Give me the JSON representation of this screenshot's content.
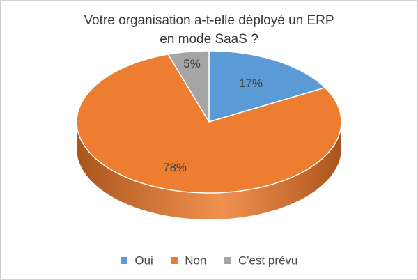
{
  "chart_data": {
    "type": "pie",
    "title_lines": [
      "Votre organisation a-t-elle déployé un ERP",
      "en mode SaaS ?"
    ],
    "slices": [
      {
        "label": "Oui",
        "value": 17,
        "display": "17%",
        "color": "#5B9BD5",
        "side_color": "#3f77ad"
      },
      {
        "label": "Non",
        "value": 78,
        "display": "78%",
        "color": "#ED7D31",
        "side_color": "#a9541b"
      },
      {
        "label": "C'est prévu",
        "value": 5,
        "display": "5%",
        "color": "#A5A5A5",
        "side_color": "#7a7a7a"
      }
    ],
    "legend_position": "bottom",
    "style": "3d"
  }
}
